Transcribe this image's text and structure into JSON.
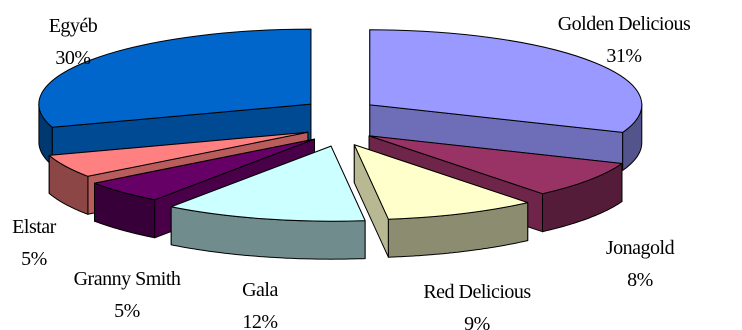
{
  "chart_data": {
    "type": "pie",
    "style": "3d-exploded",
    "title": "",
    "slices": [
      {
        "label": "Golden Delicious",
        "value": 31,
        "pct_label": "31%",
        "color": "#9999ff"
      },
      {
        "label": "Jonagold",
        "value": 8,
        "pct_label": "8%",
        "color": "#993366"
      },
      {
        "label": "Red Delicious",
        "value": 9,
        "pct_label": "9%",
        "color": "#ffffcc"
      },
      {
        "label": "Gala",
        "value": 12,
        "pct_label": "12%",
        "color": "#ccffff"
      },
      {
        "label": "Granny Smith",
        "value": 5,
        "pct_label": "5%",
        "color": "#660066"
      },
      {
        "label": "Elstar",
        "value": 5,
        "pct_label": "5%",
        "color": "#ff8080"
      },
      {
        "label": "Egyéb",
        "value": 30,
        "pct_label": "30%",
        "color": "#0066cc"
      }
    ]
  }
}
